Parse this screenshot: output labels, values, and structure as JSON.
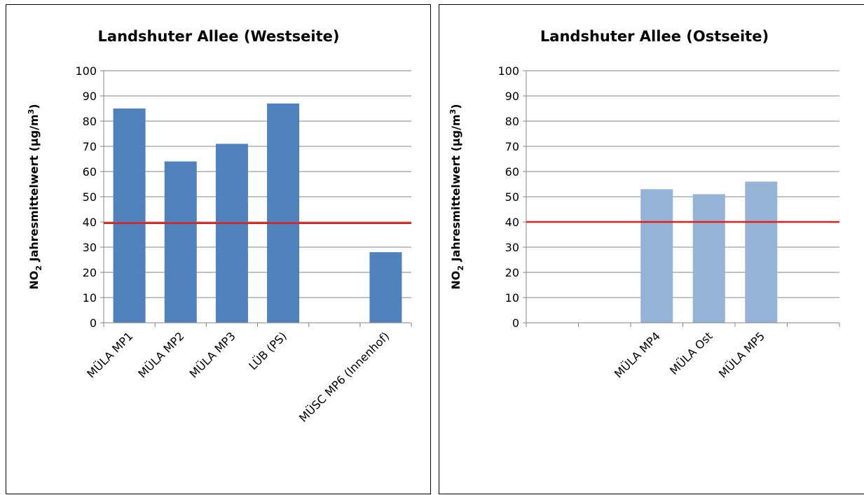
{
  "chart_data": [
    {
      "type": "bar",
      "title": "Landshuter Allee (Westseite)",
      "ylabel_main": "NO",
      "ylabel_sub": "2",
      "ylabel_rest": " Jahresmittelwert (µg/m",
      "ylabel_sup": "3",
      "ylabel_end": ")",
      "categories": [
        "MÜLA MP1",
        "MÜLA MP2",
        "MÜLA MP3",
        "LÜB (PS)",
        "",
        "MÜSC MP6 (Innenhof)"
      ],
      "values": [
        85,
        64,
        71,
        87,
        null,
        28
      ],
      "ylim": [
        0,
        100
      ],
      "yticks": [
        "0",
        "10",
        "20",
        "30",
        "40",
        "50",
        "60",
        "70",
        "80",
        "90",
        "100"
      ],
      "grid": true,
      "bar_color": "#4F81BD",
      "reference_line": {
        "value": 39.5,
        "color": "#E0201B"
      },
      "legend": "none"
    },
    {
      "type": "bar",
      "title": "Landshuter Allee (Ostseite)",
      "ylabel_main": "NO",
      "ylabel_sub": "2",
      "ylabel_rest": " Jahresmittelwert (µg/m",
      "ylabel_sup": "3",
      "ylabel_end": ")",
      "categories": [
        "",
        "",
        "MÜLA MP4",
        "MÜLA Ost",
        "MÜLA MP5",
        ""
      ],
      "values": [
        null,
        null,
        53,
        51,
        56,
        null
      ],
      "ylim": [
        0,
        100
      ],
      "yticks": [
        "0",
        "10",
        "20",
        "30",
        "40",
        "50",
        "60",
        "70",
        "80",
        "90",
        "100"
      ],
      "grid": true,
      "bar_color": "#95B3D7",
      "reference_line": {
        "value": 40,
        "color": "#E0201B"
      },
      "legend": "none"
    }
  ]
}
